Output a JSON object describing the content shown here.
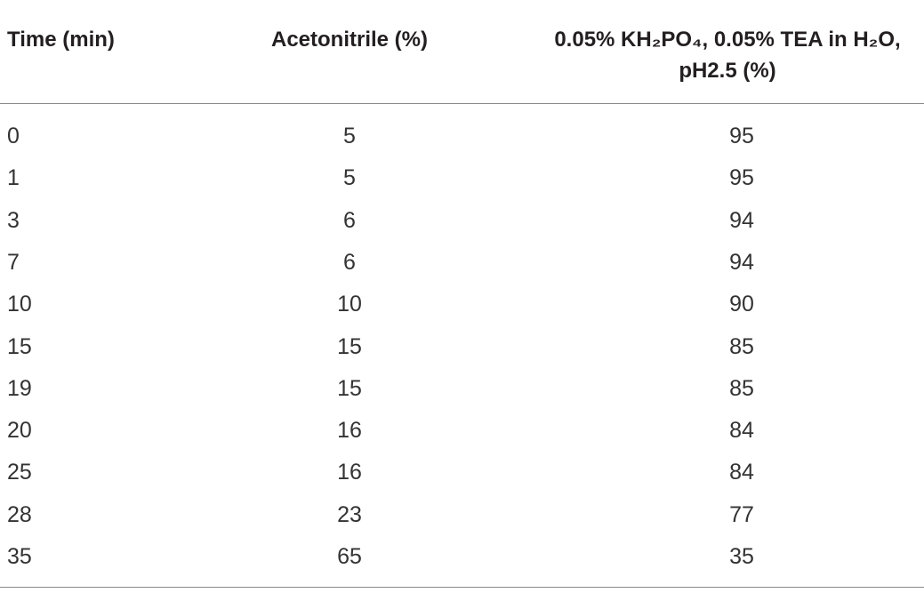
{
  "table": {
    "header": [
      "Time (min)",
      "Acetonitrile (%)",
      "0.05% KH₂PO₄, 0.05% TEA in H₂O, pH2.5 (%)"
    ],
    "rows": [
      [
        0,
        5,
        95
      ],
      [
        1,
        5,
        95
      ],
      [
        3,
        6,
        94
      ],
      [
        7,
        6,
        94
      ],
      [
        10,
        10,
        90
      ],
      [
        15,
        15,
        85
      ],
      [
        19,
        15,
        85
      ],
      [
        20,
        16,
        84
      ],
      [
        25,
        16,
        84
      ],
      [
        28,
        23,
        77
      ],
      [
        35,
        65,
        35
      ]
    ]
  }
}
